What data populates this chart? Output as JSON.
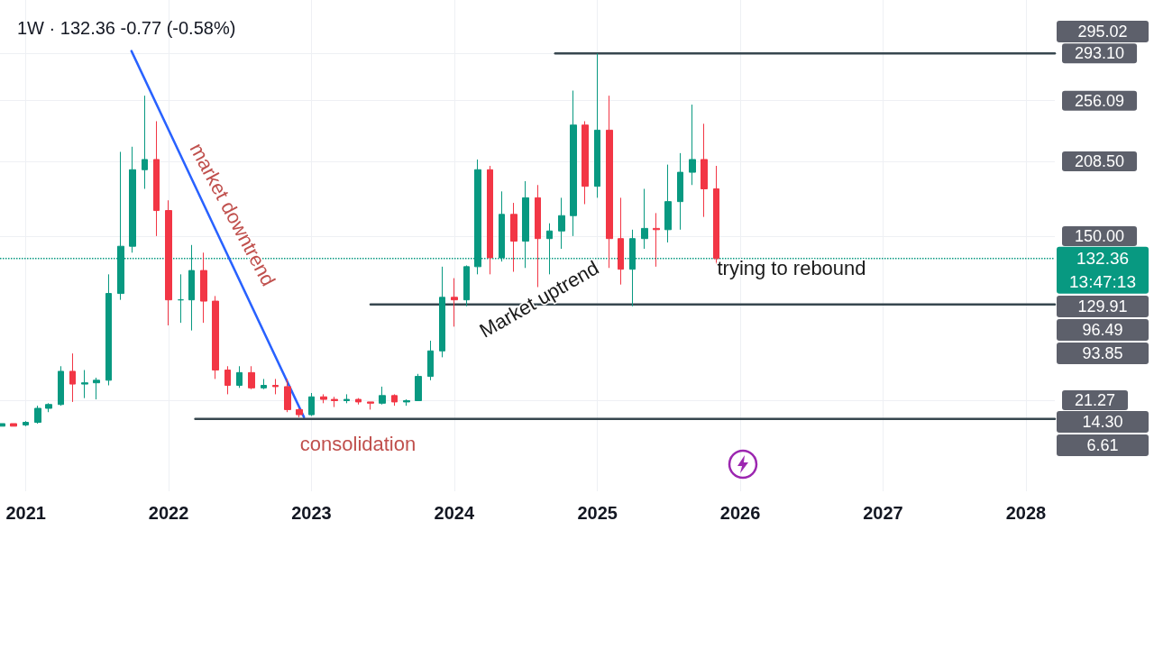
{
  "chart_data": {
    "type": "candlestick",
    "title": "1W · 132.36 -0.77 (-0.58%)",
    "xlim": [
      "2020-10-27",
      "2028-03-15"
    ],
    "xticks": [
      "2021",
      "2022",
      "2023",
      "2024",
      "2025",
      "2026",
      "2027",
      "2028"
    ],
    "ylim": [
      -50,
      335
    ],
    "yticks": [
      {
        "value": 293.1,
        "label": "293.10"
      },
      {
        "value": 256.09,
        "label": "256.09"
      },
      {
        "value": 208.5,
        "label": "208.50"
      },
      {
        "value": 150,
        "label": "150.00"
      },
      {
        "value": 21.27,
        "label": "21.27"
      }
    ],
    "grid": true,
    "series": [
      {
        "type": "line",
        "color": "#2962ff",
        "x": [
          "2021-09-28",
          "2022-12-13"
        ],
        "values": [
          295,
          8
        ]
      },
      {
        "type": "line",
        "color": "#37474f",
        "x": [
          "2024-09-15",
          "2028-03-15"
        ],
        "values": [
          293.1,
          293.1
        ]
      },
      {
        "type": "line",
        "color": "#37474f",
        "x": [
          "2023-06-01",
          "2028-03-15"
        ],
        "values": [
          96.49,
          96.49
        ]
      },
      {
        "type": "line",
        "color": "#37474f",
        "x": [
          "2022-03-10",
          "2028-03-15"
        ],
        "values": [
          6.61,
          6.61
        ]
      },
      {
        "x": [
          "2020-11-01",
          "2020-12-01",
          "2021-01-01",
          "2021-02-01",
          "2021-03-01",
          "2021-04-01",
          "2021-05-01",
          "2021-06-01",
          "2021-07-01",
          "2021-08-01",
          "2021-09-01",
          "2021-10-01",
          "2021-11-01",
          "2021-12-01",
          "2022-01-01",
          "2022-02-01",
          "2022-03-01",
          "2022-04-01",
          "2022-05-01",
          "2022-06-01",
          "2022-07-01",
          "2022-08-01",
          "2022-09-01",
          "2022-10-01",
          "2022-11-01",
          "2022-12-01",
          "2023-01-01",
          "2023-02-01",
          "2023-03-01",
          "2023-04-01",
          "2023-05-01",
          "2023-06-01",
          "2023-07-01",
          "2023-08-01",
          "2023-09-01",
          "2023-10-01",
          "2023-11-01",
          "2023-12-01",
          "2024-01-01",
          "2024-02-01",
          "2024-03-01",
          "2024-04-01",
          "2024-05-01",
          "2024-06-01",
          "2024-07-01",
          "2024-08-01",
          "2024-09-01",
          "2024-10-01",
          "2024-11-01",
          "2024-12-01",
          "2025-01-01",
          "2025-02-01",
          "2025-03-01",
          "2025-04-01",
          "2025-05-01",
          "2025-06-01",
          "2025-07-01",
          "2025-08-01",
          "2025-09-01",
          "2025-10-01",
          "2025-11-01"
        ],
        "ohlc": [
          [
            1,
            3,
            1,
            3
          ],
          [
            3,
            3,
            1,
            1
          ],
          [
            2,
            5,
            1,
            4
          ],
          [
            4,
            17,
            3,
            15
          ],
          [
            15,
            19,
            12,
            18
          ],
          [
            18,
            48,
            17,
            44
          ],
          [
            44,
            58,
            20,
            34
          ],
          [
            34,
            45,
            23,
            35
          ],
          [
            35,
            39,
            22,
            37
          ],
          [
            37,
            120,
            33,
            105
          ],
          [
            105,
            216,
            100,
            142
          ],
          [
            142,
            220,
            137,
            202
          ],
          [
            202,
            260,
            187,
            210
          ],
          [
            210,
            240,
            150,
            170
          ],
          [
            170,
            178,
            80,
            100
          ],
          [
            100,
            120,
            82,
            100
          ],
          [
            100,
            143,
            76,
            123
          ],
          [
            123,
            137,
            82,
            99
          ],
          [
            99,
            103,
            38,
            45
          ],
          [
            45,
            48,
            26,
            33
          ],
          [
            33,
            48,
            31,
            43
          ],
          [
            43,
            48,
            30,
            31
          ],
          [
            31,
            38,
            30,
            33
          ],
          [
            33,
            38,
            26,
            32
          ],
          [
            32,
            38,
            12,
            14
          ],
          [
            14,
            15,
            8,
            10
          ],
          [
            10,
            27,
            9,
            24
          ],
          [
            24,
            26,
            19,
            22
          ],
          [
            22,
            24,
            16,
            21
          ],
          [
            21,
            26,
            19,
            22
          ],
          [
            22,
            23,
            18,
            20
          ],
          [
            20,
            20,
            14,
            19
          ],
          [
            19,
            32,
            18,
            25
          ],
          [
            25,
            26,
            17,
            20
          ],
          [
            20,
            22,
            17,
            21
          ],
          [
            21,
            42,
            21,
            40
          ],
          [
            40,
            68,
            37,
            60
          ],
          [
            60,
            126,
            55,
            102
          ],
          [
            102,
            117,
            79,
            100
          ],
          [
            100,
            127,
            95,
            126
          ],
          [
            126,
            210,
            120,
            202
          ],
          [
            202,
            205,
            120,
            133
          ],
          [
            133,
            185,
            130,
            167
          ],
          [
            167,
            176,
            122,
            146
          ],
          [
            146,
            193,
            125,
            180
          ],
          [
            180,
            190,
            110,
            148
          ],
          [
            148,
            160,
            120,
            154
          ],
          [
            154,
            180,
            140,
            166
          ],
          [
            166,
            264,
            150,
            237
          ],
          [
            237,
            240,
            175,
            189
          ],
          [
            189,
            293,
            180,
            233
          ],
          [
            233,
            260,
            125,
            148
          ],
          [
            148,
            180,
            112,
            124
          ],
          [
            124,
            155,
            95,
            148
          ],
          [
            148,
            187,
            140,
            156
          ],
          [
            156,
            168,
            126,
            155
          ],
          [
            155,
            206,
            145,
            177
          ],
          [
            177,
            215,
            155,
            200
          ],
          [
            200,
            253,
            190,
            210
          ],
          [
            210,
            238,
            165,
            187
          ],
          [
            187,
            205,
            128,
            132.36
          ]
        ]
      }
    ],
    "ref_lines": [
      {
        "axis": "y",
        "value": 132.36,
        "label": "132.36\n13:47:13",
        "color": "#089981",
        "line_style": "dotted"
      }
    ],
    "annotations": [
      "market downtrend",
      "consolidation",
      "Market uptrend",
      "trying to rebound",
      "295.02",
      "129.91",
      "96.49",
      "93.85",
      "14.30",
      "6.61"
    ]
  }
}
